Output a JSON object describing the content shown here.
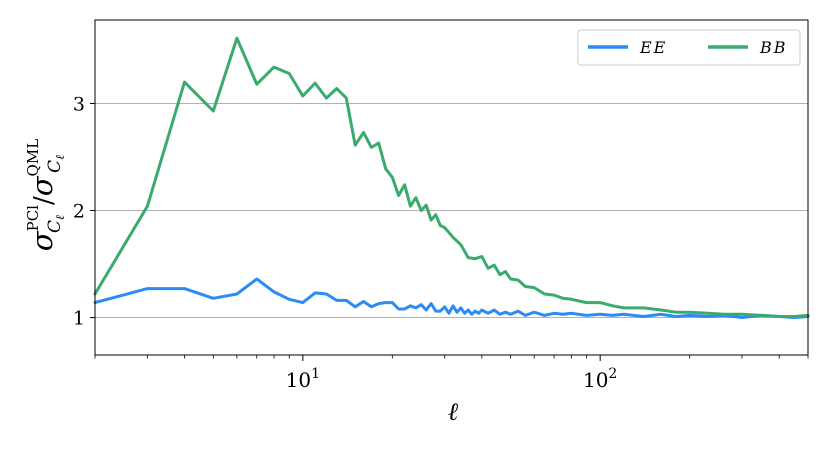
{
  "chart_data": {
    "type": "line",
    "title": "",
    "xlabel": "ℓ",
    "ylabel": "σ^PCl_Cℓ / σ^QML_Cℓ",
    "ylabel_parts": {
      "sigma": "σ",
      "sup1": "PCl",
      "sub": "C",
      "sub_ell": "ℓ",
      "slash": "/",
      "sup2": "QML"
    },
    "x_scale": "log",
    "xlim": [
      2,
      500
    ],
    "ylim": [
      0.65,
      3.78
    ],
    "x_ticks": [
      {
        "value": 10,
        "base": "10",
        "exp": "1"
      },
      {
        "value": 100,
        "base": "10",
        "exp": "2"
      }
    ],
    "y_ticks": [
      {
        "value": 1,
        "label": "1"
      },
      {
        "value": 2,
        "label": "2"
      },
      {
        "value": 3,
        "label": "3"
      }
    ],
    "grid": "horizontal",
    "legend_position": "top-right",
    "series": [
      {
        "name": "EE",
        "color": "#2b8cf3",
        "x": [
          2,
          3,
          4,
          5,
          6,
          7,
          8,
          9,
          10,
          11,
          12,
          13,
          14,
          15,
          16,
          17,
          18,
          19,
          20,
          21,
          22,
          23,
          24,
          25,
          26,
          27,
          28,
          29,
          30,
          31,
          32,
          33,
          34,
          35,
          36,
          37,
          38,
          39,
          40,
          42,
          44,
          46,
          48,
          50,
          53,
          56,
          60,
          65,
          70,
          75,
          80,
          90,
          100,
          110,
          120,
          140,
          160,
          180,
          200,
          230,
          260,
          300,
          350,
          400,
          450,
          500
        ],
        "y": [
          1.14,
          1.27,
          1.27,
          1.18,
          1.22,
          1.36,
          1.24,
          1.17,
          1.14,
          1.23,
          1.22,
          1.16,
          1.16,
          1.1,
          1.15,
          1.1,
          1.13,
          1.14,
          1.14,
          1.08,
          1.08,
          1.11,
          1.09,
          1.12,
          1.07,
          1.13,
          1.06,
          1.06,
          1.1,
          1.04,
          1.11,
          1.05,
          1.09,
          1.04,
          1.07,
          1.03,
          1.06,
          1.04,
          1.07,
          1.04,
          1.07,
          1.03,
          1.05,
          1.03,
          1.06,
          1.02,
          1.05,
          1.02,
          1.04,
          1.03,
          1.04,
          1.02,
          1.03,
          1.02,
          1.03,
          1.01,
          1.03,
          1.01,
          1.02,
          1.01,
          1.02,
          1.0,
          1.02,
          1.01,
          1.0,
          1.01
        ]
      },
      {
        "name": "BB",
        "color": "#3aaa6e",
        "x": [
          2,
          3,
          4,
          5,
          6,
          7,
          8,
          9,
          10,
          11,
          12,
          13,
          14,
          15,
          16,
          17,
          18,
          19,
          20,
          21,
          22,
          23,
          24,
          25,
          26,
          27,
          28,
          29,
          30,
          32,
          34,
          36,
          38,
          40,
          42,
          44,
          46,
          48,
          50,
          53,
          56,
          60,
          65,
          70,
          75,
          80,
          90,
          100,
          110,
          120,
          140,
          160,
          180,
          200,
          230,
          260,
          300,
          350,
          400,
          450,
          500
        ],
        "y": [
          1.22,
          2.04,
          3.2,
          2.93,
          3.61,
          3.18,
          3.34,
          3.28,
          3.07,
          3.19,
          3.05,
          3.14,
          3.05,
          2.61,
          2.73,
          2.59,
          2.63,
          2.39,
          2.31,
          2.14,
          2.24,
          2.04,
          2.12,
          2.0,
          2.05,
          1.91,
          1.96,
          1.86,
          1.84,
          1.75,
          1.68,
          1.56,
          1.55,
          1.57,
          1.46,
          1.49,
          1.4,
          1.43,
          1.36,
          1.35,
          1.29,
          1.28,
          1.22,
          1.21,
          1.18,
          1.17,
          1.14,
          1.14,
          1.11,
          1.09,
          1.09,
          1.07,
          1.05,
          1.05,
          1.04,
          1.03,
          1.03,
          1.02,
          1.01,
          1.01,
          1.02
        ]
      }
    ]
  }
}
